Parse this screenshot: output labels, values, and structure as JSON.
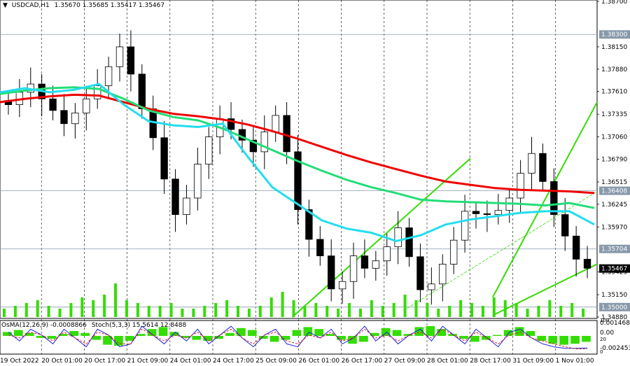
{
  "header": {
    "symbol": "USDCAD,H1",
    "ohlc": "1.35670 1.35685 1.35417 1.35467"
  },
  "indicator_header": {
    "osma": "OsMA(12,26,9) -0.0008866",
    "stoch": "Stoch(5,3,3) 15.5614 12.8488"
  },
  "colors": {
    "candle": "#000000",
    "ema_red": "#ee0000",
    "ema_green": "#22dd77",
    "ema_cyan": "#22ddee",
    "channel": "#33dd00",
    "volume": "#33dd00",
    "hline": "#8899aa",
    "grid": "#000000",
    "price_badge": "#000000"
  },
  "chart_data": {
    "type": "line",
    "price_axis": {
      "min": 1.3488,
      "max": 1.387,
      "ticks": [
        "1.38700",
        "1.38150",
        "1.37880",
        "1.37610",
        "1.37335",
        "1.37060",
        "1.36790",
        "1.36515",
        "1.36245",
        "1.35970",
        "1.35425",
        "1.35150",
        "1.34880"
      ]
    },
    "levels": [
      {
        "label": "1.38300",
        "value": 1.383
      },
      {
        "label": "1.36408",
        "value": 1.36408
      },
      {
        "label": "1.35704",
        "value": 1.35704
      },
      {
        "label": "1.35000",
        "value": 1.35
      }
    ],
    "current_price": {
      "label": "1.35467",
      "value": 1.35467
    },
    "time_labels": [
      "19 Oct 2022",
      "20 Oct 01:00",
      "20 Oct 17:00",
      "21 Oct 09:00",
      "24 Oct 01:00",
      "24 Oct 17:00",
      "25 Oct 09:00",
      "26 Oct 01:00",
      "26 Oct 17:00",
      "27 Oct 09:00",
      "28 Oct 01:00",
      "28 Oct 17:00",
      "31 Oct 09:00",
      "1 Nov 01:00"
    ],
    "close": [
      1.3745,
      1.376,
      1.377,
      1.3752,
      1.3738,
      1.3722,
      1.3735,
      1.3752,
      1.3768,
      1.3791,
      1.3815,
      1.3782,
      1.374,
      1.3705,
      1.3655,
      1.3612,
      1.3632,
      1.3673,
      1.3706,
      1.3728,
      1.3715,
      1.3702,
      1.3688,
      1.3712,
      1.3732,
      1.3688,
      1.3618,
      1.3582,
      1.3562,
      1.3522,
      1.3531,
      1.3562,
      1.3547,
      1.3556,
      1.3573,
      1.3596,
      1.3561,
      1.3521,
      1.3528,
      1.3552,
      1.3581,
      1.3616,
      1.3613,
      1.3612,
      1.3617,
      1.3632,
      1.3662,
      1.3686,
      1.3652,
      1.3612,
      1.3586,
      1.3558,
      1.3547
    ],
    "ema_red": [
      1.3748,
      1.3752,
      1.3755,
      1.3757,
      1.3756,
      1.3748,
      1.374,
      1.3734,
      1.3731,
      1.3727,
      1.3721,
      1.3713,
      1.3704,
      1.3694,
      1.3684,
      1.3675,
      1.3667,
      1.3659,
      1.3652,
      1.3648,
      1.3644,
      1.3642,
      1.3641,
      1.364,
      1.3638
    ],
    "ema_green": [
      1.3758,
      1.3762,
      1.3765,
      1.3766,
      1.3764,
      1.3752,
      1.3738,
      1.373,
      1.3726,
      1.3716,
      1.3703,
      1.369,
      1.3677,
      1.3665,
      1.3654,
      1.3645,
      1.3638,
      1.363,
      1.3628,
      1.3627,
      1.3626,
      1.3625,
      1.3623,
      1.3626,
      1.362
    ],
    "ema_cyan": [
      1.376,
      1.3765,
      1.376,
      1.3763,
      1.377,
      1.3745,
      1.3725,
      1.372,
      1.3718,
      1.3722,
      1.3682,
      1.3645,
      1.3625,
      1.3605,
      1.3595,
      1.359,
      1.358,
      1.3587,
      1.36,
      1.3606,
      1.361,
      1.3614,
      1.3616,
      1.3616,
      1.36
    ],
    "volume": [
      3,
      4,
      5,
      6,
      4,
      3,
      5,
      7,
      6,
      8,
      12,
      6,
      5,
      4,
      4,
      5,
      3,
      3,
      4,
      5,
      6,
      4,
      3,
      4,
      7,
      9,
      6,
      4,
      5,
      4,
      3,
      5,
      3,
      6,
      4,
      5,
      8,
      6,
      5,
      3,
      4,
      6,
      5,
      4,
      7,
      6,
      5,
      3,
      4,
      6,
      4,
      5,
      3
    ],
    "osma": [
      0.4,
      0.6,
      0.3,
      -0.2,
      -0.3,
      0.2,
      0.5,
      0.3,
      -0.4,
      -0.9,
      -1.0,
      -0.5,
      0.2,
      0.7,
      0.9,
      0.4,
      -0.2,
      -0.4,
      -0.5,
      -0.3,
      0.3,
      0.8,
      0.6,
      -0.3,
      -0.6,
      -0.4,
      0.6,
      0.9,
      0.7,
      0.2,
      -0.4,
      -0.8,
      -0.6,
      0.3,
      0.8,
      0.6,
      0.2,
      0.9,
      1.0,
      0.7,
      0.2,
      -0.3,
      -0.6,
      -0.4,
      0.1,
      0.6,
      0.9,
      0.5,
      -0.5,
      -0.8,
      -0.9,
      -0.8,
      -0.6
    ],
    "stoch_main": [
      0.7,
      0.4,
      0.8,
      0.6,
      0.3,
      0.8,
      0.5,
      0.2,
      0.8,
      0.6,
      0.2,
      0.3,
      0.9,
      0.6,
      0.3,
      0.7,
      0.4,
      0.8,
      0.3,
      0.6,
      0.9,
      0.5,
      0.2,
      0.6,
      0.8,
      0.3,
      0.2,
      0.7,
      0.5,
      0.8,
      0.3,
      0.5,
      0.9,
      0.4,
      0.7,
      0.3,
      0.6,
      0.8,
      0.4,
      0.9,
      0.6,
      0.3,
      0.8,
      0.5,
      0.2,
      0.7,
      0.8,
      0.5,
      0.3,
      0.2,
      0.15,
      0.15,
      0.16
    ],
    "stoch_signal": [
      0.6,
      0.5,
      0.7,
      0.6,
      0.4,
      0.7,
      0.5,
      0.3,
      0.7,
      0.6,
      0.3,
      0.3,
      0.8,
      0.6,
      0.4,
      0.6,
      0.5,
      0.7,
      0.4,
      0.6,
      0.8,
      0.5,
      0.3,
      0.6,
      0.7,
      0.4,
      0.3,
      0.6,
      0.5,
      0.7,
      0.4,
      0.5,
      0.8,
      0.5,
      0.6,
      0.4,
      0.6,
      0.7,
      0.5,
      0.8,
      0.6,
      0.4,
      0.7,
      0.5,
      0.3,
      0.6,
      0.7,
      0.5,
      0.4,
      0.3,
      0.2,
      0.13,
      0.13
    ],
    "osma_axis": [
      "0.0014687",
      "0.00",
      "-0.002453"
    ],
    "stoch_axis": [
      "100",
      "20",
      "0"
    ]
  }
}
